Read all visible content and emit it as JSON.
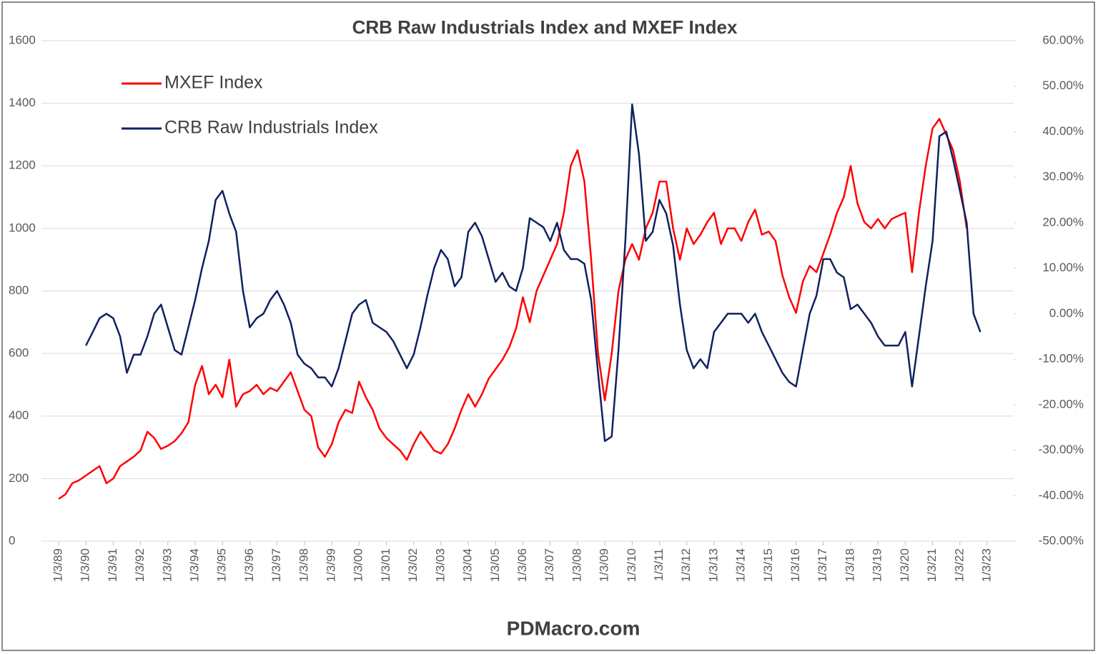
{
  "chart_data": {
    "type": "line",
    "title": "CRB  Raw Industrials Index and MXEF Index",
    "footer": "PDMacro.com",
    "grid": true,
    "legend": "upper-left",
    "xlim": [
      1989,
      2023
    ],
    "xticks": [
      {
        "value": 1989,
        "label": "1/3/89"
      },
      {
        "value": 1990,
        "label": "1/3/90"
      },
      {
        "value": 1991,
        "label": "1/3/91"
      },
      {
        "value": 1992,
        "label": "1/3/92"
      },
      {
        "value": 1993,
        "label": "1/3/93"
      },
      {
        "value": 1994,
        "label": "1/3/94"
      },
      {
        "value": 1995,
        "label": "1/3/95"
      },
      {
        "value": 1996,
        "label": "1/3/96"
      },
      {
        "value": 1997,
        "label": "1/3/97"
      },
      {
        "value": 1998,
        "label": "1/3/98"
      },
      {
        "value": 1999,
        "label": "1/3/99"
      },
      {
        "value": 2000,
        "label": "1/3/00"
      },
      {
        "value": 2001,
        "label": "1/3/01"
      },
      {
        "value": 2002,
        "label": "1/3/02"
      },
      {
        "value": 2003,
        "label": "1/3/03"
      },
      {
        "value": 2004,
        "label": "1/3/04"
      },
      {
        "value": 2005,
        "label": "1/3/05"
      },
      {
        "value": 2006,
        "label": "1/3/06"
      },
      {
        "value": 2007,
        "label": "1/3/07"
      },
      {
        "value": 2008,
        "label": "1/3/08"
      },
      {
        "value": 2009,
        "label": "1/3/09"
      },
      {
        "value": 2010,
        "label": "1/3/10"
      },
      {
        "value": 2011,
        "label": "1/3/11"
      },
      {
        "value": 2012,
        "label": "1/3/12"
      },
      {
        "value": 2013,
        "label": "1/3/13"
      },
      {
        "value": 2014,
        "label": "1/3/14"
      },
      {
        "value": 2015,
        "label": "1/3/15"
      },
      {
        "value": 2016,
        "label": "1/3/16"
      },
      {
        "value": 2017,
        "label": "1/3/17"
      },
      {
        "value": 2018,
        "label": "1/3/18"
      },
      {
        "value": 2019,
        "label": "1/3/19"
      },
      {
        "value": 2020,
        "label": "1/3/20"
      },
      {
        "value": 2021,
        "label": "1/3/21"
      },
      {
        "value": 2022,
        "label": "1/3/22"
      },
      {
        "value": 2023,
        "label": "1/3/23"
      }
    ],
    "ylim": [
      0,
      1600
    ],
    "yticks": [
      0,
      200,
      400,
      600,
      800,
      1000,
      1200,
      1400,
      1600
    ],
    "y2lim": [
      -50,
      60
    ],
    "y2ticks": [
      {
        "value": -50,
        "label": "-50.00%"
      },
      {
        "value": -40,
        "label": "-40.00%"
      },
      {
        "value": -30,
        "label": "-30.00%"
      },
      {
        "value": -20,
        "label": "-20.00%"
      },
      {
        "value": -10,
        "label": "-10.00%"
      },
      {
        "value": 0,
        "label": "0.00%"
      },
      {
        "value": 10,
        "label": "10.00%"
      },
      {
        "value": 20,
        "label": "20.00%"
      },
      {
        "value": 30,
        "label": "30.00%"
      },
      {
        "value": 40,
        "label": "40.00%"
      },
      {
        "value": 50,
        "label": "50.00%"
      },
      {
        "value": 60,
        "label": "60.00%"
      }
    ],
    "series": [
      {
        "name": "MXEF Index",
        "color": "#ff0000",
        "axis": "y",
        "x": [
          1989,
          1989.25,
          1989.5,
          1989.75,
          1990,
          1990.25,
          1990.5,
          1990.75,
          1991,
          1991.25,
          1991.5,
          1991.75,
          1992,
          1992.25,
          1992.5,
          1992.75,
          1993,
          1993.25,
          1993.5,
          1993.75,
          1994,
          1994.25,
          1994.5,
          1994.75,
          1995,
          1995.25,
          1995.5,
          1995.75,
          1996,
          1996.25,
          1996.5,
          1996.75,
          1997,
          1997.25,
          1997.5,
          1997.75,
          1998,
          1998.25,
          1998.5,
          1998.75,
          1999,
          1999.25,
          1999.5,
          1999.75,
          2000,
          2000.25,
          2000.5,
          2000.75,
          2001,
          2001.25,
          2001.5,
          2001.75,
          2002,
          2002.25,
          2002.5,
          2002.75,
          2003,
          2003.25,
          2003.5,
          2003.75,
          2004,
          2004.25,
          2004.5,
          2004.75,
          2005,
          2005.25,
          2005.5,
          2005.75,
          2006,
          2006.25,
          2006.5,
          2006.75,
          2007,
          2007.25,
          2007.5,
          2007.75,
          2008,
          2008.25,
          2008.5,
          2008.75,
          2009,
          2009.25,
          2009.5,
          2009.75,
          2010,
          2010.25,
          2010.5,
          2010.75,
          2011,
          2011.25,
          2011.5,
          2011.75,
          2012,
          2012.25,
          2012.5,
          2012.75,
          2013,
          2013.25,
          2013.5,
          2013.75,
          2014,
          2014.25,
          2014.5,
          2014.75,
          2015,
          2015.25,
          2015.5,
          2015.75,
          2016,
          2016.25,
          2016.5,
          2016.75,
          2017,
          2017.25,
          2017.5,
          2017.75,
          2018,
          2018.25,
          2018.5,
          2018.75,
          2019,
          2019.25,
          2019.5,
          2019.75,
          2020,
          2020.25,
          2020.5,
          2020.75,
          2021,
          2021.25,
          2021.5,
          2021.75,
          2022,
          2022.25
        ],
        "values": [
          135,
          150,
          185,
          195,
          210,
          225,
          240,
          185,
          200,
          240,
          255,
          270,
          290,
          350,
          330,
          295,
          305,
          320,
          345,
          380,
          500,
          560,
          470,
          500,
          460,
          580,
          430,
          470,
          480,
          500,
          470,
          490,
          480,
          510,
          540,
          480,
          420,
          400,
          300,
          270,
          310,
          380,
          420,
          410,
          510,
          460,
          420,
          360,
          330,
          310,
          290,
          260,
          310,
          350,
          320,
          290,
          280,
          310,
          360,
          420,
          470,
          430,
          470,
          520,
          550,
          580,
          620,
          680,
          780,
          700,
          800,
          850,
          900,
          950,
          1050,
          1200,
          1250,
          1150,
          900,
          600,
          450,
          600,
          800,
          900,
          950,
          900,
          1000,
          1050,
          1150,
          1150,
          1000,
          900,
          1000,
          950,
          980,
          1020,
          1050,
          950,
          1000,
          1000,
          960,
          1020,
          1060,
          980,
          990,
          960,
          850,
          780,
          730,
          830,
          880,
          860,
          920,
          980,
          1050,
          1100,
          1200,
          1080,
          1020,
          1000,
          1030,
          1000,
          1030,
          1040,
          1050,
          860,
          1050,
          1200,
          1320,
          1350,
          1300,
          1250,
          1150,
          1000
        ]
      },
      {
        "name": "CRB Raw Industrials Index",
        "color": "#0f2160",
        "axis": "y2",
        "x": [
          1990,
          1990.25,
          1990.5,
          1990.75,
          1991,
          1991.25,
          1991.5,
          1991.75,
          1992,
          1992.25,
          1992.5,
          1992.75,
          1993,
          1993.25,
          1993.5,
          1993.75,
          1994,
          1994.25,
          1994.5,
          1994.75,
          1995,
          1995.25,
          1995.5,
          1995.75,
          1996,
          1996.25,
          1996.5,
          1996.75,
          1997,
          1997.25,
          1997.5,
          1997.75,
          1998,
          1998.25,
          1998.5,
          1998.75,
          1999,
          1999.25,
          1999.5,
          1999.75,
          2000,
          2000.25,
          2000.5,
          2000.75,
          2001,
          2001.25,
          2001.5,
          2001.75,
          2002,
          2002.25,
          2002.5,
          2002.75,
          2003,
          2003.25,
          2003.5,
          2003.75,
          2004,
          2004.25,
          2004.5,
          2004.75,
          2005,
          2005.25,
          2005.5,
          2005.75,
          2006,
          2006.25,
          2006.5,
          2006.75,
          2007,
          2007.25,
          2007.5,
          2007.75,
          2008,
          2008.25,
          2008.5,
          2008.75,
          2009,
          2009.25,
          2009.5,
          2009.75,
          2010,
          2010.25,
          2010.5,
          2010.75,
          2011,
          2011.25,
          2011.5,
          2011.75,
          2012,
          2012.25,
          2012.5,
          2012.75,
          2013,
          2013.25,
          2013.5,
          2013.75,
          2014,
          2014.25,
          2014.5,
          2014.75,
          2015,
          2015.25,
          2015.5,
          2015.75,
          2016,
          2016.25,
          2016.5,
          2016.75,
          2017,
          2017.25,
          2017.5,
          2017.75,
          2018,
          2018.25,
          2018.5,
          2018.75,
          2019,
          2019.25,
          2019.5,
          2019.75,
          2020,
          2020.25,
          2020.5,
          2020.75,
          2021,
          2021.25,
          2021.5,
          2021.75,
          2022,
          2022.25,
          2022.5,
          2022.75
        ],
        "values": [
          -7,
          -4,
          -1,
          0,
          -1,
          -5,
          -13,
          -9,
          -9,
          -5,
          0,
          2,
          -3,
          -8,
          -9,
          -3,
          3,
          10,
          16,
          25,
          27,
          22,
          18,
          5,
          -3,
          -1,
          0,
          3,
          5,
          2,
          -2,
          -9,
          -11,
          -12,
          -14,
          -14,
          -16,
          -12,
          -6,
          0,
          2,
          3,
          -2,
          -3,
          -4,
          -6,
          -9,
          -12,
          -9,
          -3,
          4,
          10,
          14,
          12,
          6,
          8,
          18,
          20,
          17,
          12,
          7,
          9,
          6,
          5,
          10,
          21,
          20,
          19,
          16,
          20,
          14,
          12,
          12,
          11,
          3,
          -13,
          -28,
          -27,
          -8,
          16,
          46,
          35,
          16,
          18,
          25,
          22,
          15,
          2,
          -8,
          -12,
          -10,
          -12,
          -4,
          -2,
          0,
          0,
          0,
          -2,
          0,
          -4,
          -7,
          -10,
          -13,
          -15,
          -16,
          -8,
          0,
          4,
          12,
          12,
          9,
          8,
          1,
          2,
          0,
          -2,
          -5,
          -7,
          -7,
          -7,
          -4,
          -16,
          -5,
          6,
          16,
          39,
          40,
          34,
          27,
          20,
          0,
          -4
        ]
      }
    ]
  }
}
